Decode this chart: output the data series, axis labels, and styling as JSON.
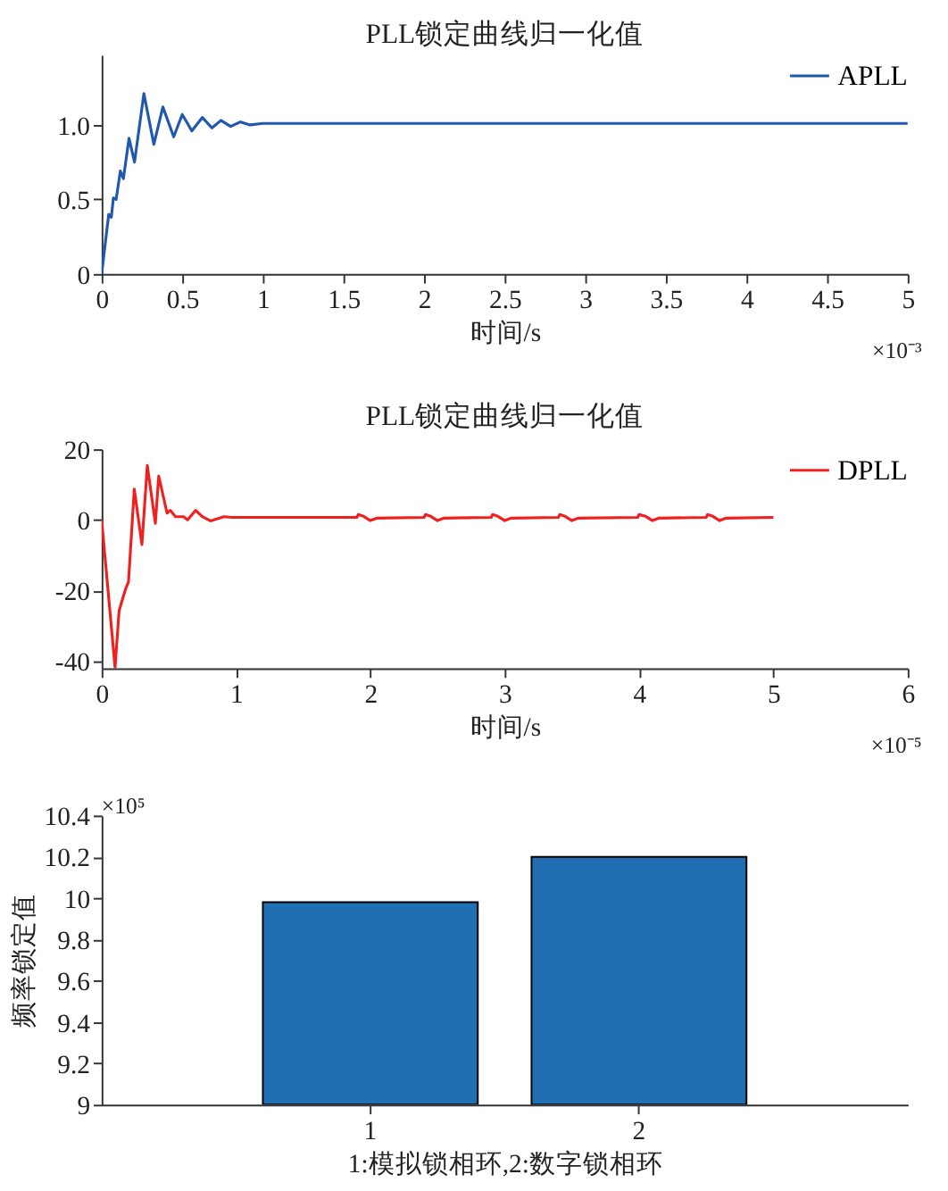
{
  "chart_data": [
    {
      "type": "line",
      "title": "PLL锁定曲线归一化值",
      "xlabel": "时间/s",
      "annotations": [
        "×10⁻³"
      ],
      "xlim": [
        0,
        5
      ],
      "xticks": [
        0,
        0.5,
        1,
        1.5,
        2,
        2.5,
        3,
        3.5,
        4,
        4.5,
        5
      ],
      "ylim": [
        0,
        1.47
      ],
      "yticks": [
        0,
        0.5,
        {
          "value": 1,
          "label": "1.0"
        }
      ],
      "grid": false,
      "legend": "top right",
      "series": [
        {
          "name": "APLL",
          "color": "#2058b0",
          "x": [
            0,
            0.044,
            0.06,
            0.073,
            0.09,
            0.116,
            0.135,
            0.17,
            0.204,
            0.262,
            0.324,
            0.38,
            0.447,
            0.5,
            0.56,
            0.625,
            0.684,
            0.74,
            0.8,
            0.86,
            0.92,
            1.0,
            1.3,
            5
          ],
          "values": [
            0,
            0.4,
            0.38,
            0.51,
            0.5,
            0.69,
            0.64,
            0.91,
            0.75,
            1.21,
            0.87,
            1.12,
            0.92,
            1.07,
            0.96,
            1.05,
            0.98,
            1.03,
            0.99,
            1.02,
            1.0,
            1.01,
            1.01,
            1.01
          ]
        }
      ]
    },
    {
      "type": "line",
      "title": "PLL锁定曲线归一化值",
      "xlabel": "时间/s",
      "annotations": [
        "×10⁻⁵"
      ],
      "xlim": [
        0,
        6
      ],
      "xticks": [
        0,
        1,
        2,
        3,
        4,
        5,
        6
      ],
      "ylim": [
        -42,
        20
      ],
      "yticks": [
        -40,
        -20,
        0,
        20
      ],
      "grid": false,
      "legend": "top right",
      "series": [
        {
          "name": "DPLL",
          "color": "#f02020",
          "x": [
            0,
            0.1,
            0.13,
            0.177,
            0.2,
            0.243,
            0.3,
            0.34,
            0.4,
            0.425,
            0.487,
            0.51,
            0.55,
            0.61,
            0.64,
            0.7,
            0.75,
            0.81,
            0.91,
            0.97,
            1.9,
            1.91,
            1.95,
            2.0,
            2.05,
            2.4,
            2.41,
            2.45,
            2.5,
            2.55,
            2.9,
            2.91,
            2.95,
            3.0,
            3.05,
            3.4,
            3.41,
            3.45,
            3.5,
            3.55,
            3.99,
            4.0,
            4.05,
            4.1,
            4.15,
            4.5,
            4.51,
            4.55,
            4.6,
            4.65,
            5.0
          ],
          "values": [
            0,
            -41.8,
            -25.7,
            -19.7,
            -17.5,
            8.7,
            -7,
            15.4,
            -1,
            12.4,
            1.9,
            2.7,
            0.9,
            0.9,
            0,
            2.7,
            0.9,
            -0.3,
            0.9,
            0.7,
            0.7,
            1.5,
            1.0,
            -0.2,
            0.5,
            0.7,
            1.5,
            1.0,
            -0.2,
            0.5,
            0.7,
            1.5,
            1.0,
            -0.2,
            0.5,
            0.7,
            1.5,
            1.0,
            -0.2,
            0.5,
            0.7,
            1.5,
            1.0,
            -0.2,
            0.5,
            0.7,
            1.5,
            1.0,
            -0.2,
            0.5,
            0.7
          ]
        }
      ]
    },
    {
      "type": "bar",
      "xlabel": "1:模拟锁相环,2:数字锁相环",
      "ylabel": "频率锁定值",
      "annotations": [
        "×10⁵"
      ],
      "categories": [
        "1",
        "2"
      ],
      "values": [
        9.98,
        10.2
      ],
      "color": "#1f6fb2",
      "ylim": [
        9,
        10.4
      ],
      "yticks": [
        9,
        9.2,
        9.4,
        9.6,
        9.8,
        10,
        10.2,
        10.4
      ],
      "grid": false
    }
  ]
}
